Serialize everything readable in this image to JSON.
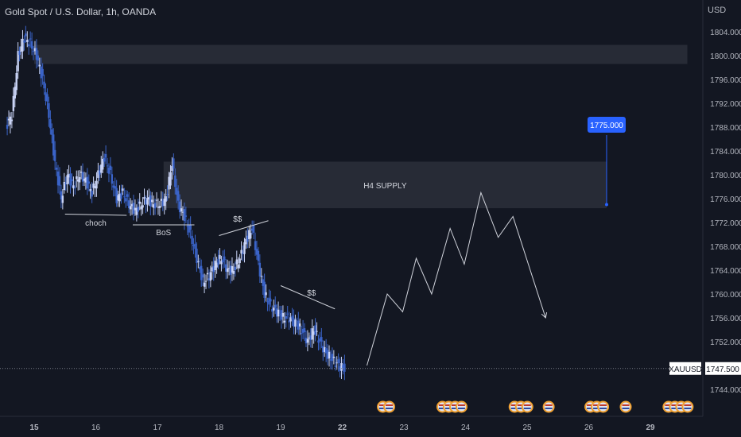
{
  "header": {
    "title": "Gold Spot / U.S. Dollar, 1h, OANDA",
    "currency": "USD"
  },
  "colors": {
    "background": "#131722",
    "candle": "#3a63c8",
    "candle_light": "#c9d3f5",
    "zone": "#2a2e39",
    "target": "#2962ff",
    "text": "#d1d4dc"
  },
  "chart_data": {
    "type": "line",
    "title": "Gold Spot / U.S. Dollar, 1h, OANDA",
    "xlabel": "",
    "ylabel": "",
    "ylim": [
      1740,
      1806
    ],
    "y_ticks": [
      "1804.000",
      "1800.000",
      "1796.000",
      "1792.000",
      "1788.000",
      "1784.000",
      "1780.000",
      "1776.000",
      "1772.000",
      "1768.000",
      "1764.000",
      "1760.000",
      "1756.000",
      "1752.000",
      "1748.000",
      "1744.000"
    ],
    "x_ticks": [
      {
        "label": "15",
        "day": 15
      },
      {
        "label": "16",
        "day": 16
      },
      {
        "label": "17",
        "day": 17
      },
      {
        "label": "18",
        "day": 18
      },
      {
        "label": "19",
        "day": 19
      },
      {
        "label": "22",
        "day": 20
      },
      {
        "label": "23",
        "day": 21
      },
      {
        "label": "24",
        "day": 22
      },
      {
        "label": "25",
        "day": 23
      },
      {
        "label": "26",
        "day": 24
      },
      {
        "label": "29",
        "day": 25
      }
    ],
    "price_path": [
      {
        "day": 14.55,
        "price": 1788
      },
      {
        "day": 14.65,
        "price": 1790
      },
      {
        "day": 14.75,
        "price": 1800
      },
      {
        "day": 14.85,
        "price": 1803
      },
      {
        "day": 14.95,
        "price": 1802
      },
      {
        "day": 15.05,
        "price": 1800
      },
      {
        "day": 15.15,
        "price": 1796
      },
      {
        "day": 15.25,
        "price": 1790
      },
      {
        "day": 15.35,
        "price": 1782
      },
      {
        "day": 15.45,
        "price": 1776
      },
      {
        "day": 15.55,
        "price": 1780
      },
      {
        "day": 15.65,
        "price": 1778
      },
      {
        "day": 15.75,
        "price": 1780
      },
      {
        "day": 15.85,
        "price": 1779
      },
      {
        "day": 15.95,
        "price": 1777
      },
      {
        "day": 16.05,
        "price": 1780
      },
      {
        "day": 16.15,
        "price": 1783
      },
      {
        "day": 16.25,
        "price": 1780
      },
      {
        "day": 16.35,
        "price": 1776
      },
      {
        "day": 16.45,
        "price": 1777
      },
      {
        "day": 16.55,
        "price": 1775
      },
      {
        "day": 16.65,
        "price": 1774
      },
      {
        "day": 16.75,
        "price": 1775
      },
      {
        "day": 16.85,
        "price": 1776
      },
      {
        "day": 16.95,
        "price": 1775
      },
      {
        "day": 17.05,
        "price": 1775
      },
      {
        "day": 17.15,
        "price": 1776
      },
      {
        "day": 17.25,
        "price": 1782
      },
      {
        "day": 17.35,
        "price": 1775
      },
      {
        "day": 17.45,
        "price": 1773
      },
      {
        "day": 17.55,
        "price": 1770
      },
      {
        "day": 17.65,
        "price": 1766
      },
      {
        "day": 17.75,
        "price": 1762
      },
      {
        "day": 17.85,
        "price": 1763
      },
      {
        "day": 17.95,
        "price": 1765
      },
      {
        "day": 18.05,
        "price": 1766
      },
      {
        "day": 18.15,
        "price": 1764
      },
      {
        "day": 18.25,
        "price": 1764
      },
      {
        "day": 18.35,
        "price": 1766
      },
      {
        "day": 18.45,
        "price": 1769
      },
      {
        "day": 18.55,
        "price": 1771
      },
      {
        "day": 18.65,
        "price": 1765
      },
      {
        "day": 18.75,
        "price": 1760
      },
      {
        "day": 18.85,
        "price": 1758
      },
      {
        "day": 18.95,
        "price": 1757
      },
      {
        "day": 19.05,
        "price": 1756
      },
      {
        "day": 19.15,
        "price": 1756
      },
      {
        "day": 19.25,
        "price": 1755
      },
      {
        "day": 19.35,
        "price": 1754
      },
      {
        "day": 19.45,
        "price": 1752
      },
      {
        "day": 19.55,
        "price": 1754
      },
      {
        "day": 19.65,
        "price": 1752
      },
      {
        "day": 19.75,
        "price": 1750
      },
      {
        "day": 19.85,
        "price": 1749
      },
      {
        "day": 19.95,
        "price": 1748
      },
      {
        "day": 20.05,
        "price": 1747.5
      }
    ],
    "projection": [
      {
        "day": 20.4,
        "price": 1748
      },
      {
        "day": 20.73,
        "price": 1760
      },
      {
        "day": 20.98,
        "price": 1757
      },
      {
        "day": 21.2,
        "price": 1766
      },
      {
        "day": 21.45,
        "price": 1760
      },
      {
        "day": 21.75,
        "price": 1771
      },
      {
        "day": 21.98,
        "price": 1765
      },
      {
        "day": 22.25,
        "price": 1777
      },
      {
        "day": 22.53,
        "price": 1769.5
      },
      {
        "day": 22.77,
        "price": 1773
      },
      {
        "day": 23.3,
        "price": 1756
      }
    ],
    "zones": [
      {
        "name": "top-zone",
        "label": "",
        "from": {
          "day": 15.0,
          "price": 1801.8
        },
        "to": {
          "day": 25.6,
          "price": 1798.6
        }
      },
      {
        "name": "h4-supply",
        "label": "H4 SUPPLY",
        "from": {
          "day": 17.1,
          "price": 1782.2
        },
        "to": {
          "day": 24.29,
          "price": 1774.4
        }
      }
    ],
    "annotations": [
      {
        "name": "choch",
        "label": "choch",
        "line": [
          {
            "day": 15.5,
            "price": 1773.4
          },
          {
            "day": 16.5,
            "price": 1773.2
          }
        ],
        "label_at": {
          "day": 16.0,
          "price": 1772.0
        }
      },
      {
        "name": "bos",
        "label": "BoS",
        "line": [
          {
            "day": 16.6,
            "price": 1771.6
          },
          {
            "day": 17.6,
            "price": 1771.6
          }
        ],
        "label_at": {
          "day": 17.1,
          "price": 1770.4
        }
      },
      {
        "name": "liquidity-1",
        "label": "$$",
        "line": [
          {
            "day": 18.0,
            "price": 1769.8
          },
          {
            "day": 18.8,
            "price": 1772.3
          }
        ],
        "label_at": {
          "day": 18.3,
          "price": 1772.7
        }
      },
      {
        "name": "liquidity-2",
        "label": "$$",
        "line": [
          {
            "day": 19.0,
            "price": 1761.4
          },
          {
            "day": 19.88,
            "price": 1757.5
          }
        ],
        "label_at": {
          "day": 19.5,
          "price": 1760.3
        }
      }
    ],
    "target": {
      "label": "1775.000",
      "price": 1775.0,
      "day": 24.29
    },
    "current_price": {
      "symbol": "XAUUSD",
      "label": "1747.500",
      "price": 1747.5,
      "hidden_tick": "1748.000"
    },
    "event_markers": [
      {
        "day": 20.71,
        "count": 2
      },
      {
        "day": 21.78,
        "count": 4
      },
      {
        "day": 22.9,
        "count": 3
      },
      {
        "day": 23.35,
        "count": 1
      },
      {
        "day": 24.13,
        "count": 3
      },
      {
        "day": 24.6,
        "count": 1
      },
      {
        "day": 25.45,
        "count": 4
      }
    ]
  }
}
